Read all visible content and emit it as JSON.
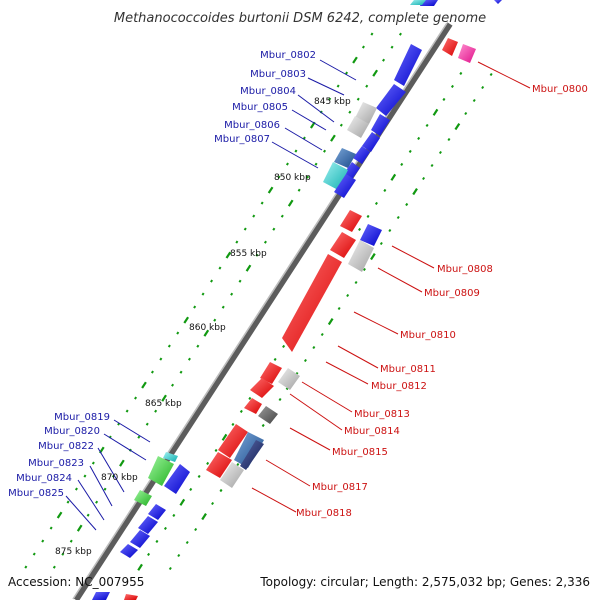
{
  "title": "Methanococcoides burtonii DSM 6242, complete genome",
  "footer": {
    "accession": "Accession: NC_007955",
    "summary": "Topology: circular; Length: 2,575,032 bp; Genes: 2,336"
  },
  "ticks": [
    "845 kbp",
    "850 kbp",
    "855 kbp",
    "860 kbp",
    "865 kbp",
    "870 kbp",
    "875 kbp"
  ],
  "colors": {
    "backbone": "#7a7a7a",
    "tick_dot": "#119911",
    "forward_gene": "#1010e0",
    "reverse_gene": "#ee1111",
    "label_blue": "#1a1aa6",
    "label_red": "#cc1111"
  },
  "gene_labels_left": [
    "Mbur_0802",
    "Mbur_0803",
    "Mbur_0804",
    "Mbur_0805",
    "Mbur_0806",
    "Mbur_0807",
    "Mbur_0819",
    "Mbur_0820",
    "Mbur_0822",
    "Mbur_0823",
    "Mbur_0824",
    "Mbur_0825"
  ],
  "gene_labels_right": [
    "Mbur_0800",
    "Mbur_0808",
    "Mbur_0809",
    "Mbur_0810",
    "Mbur_0811",
    "Mbur_0812",
    "Mbur_0813",
    "Mbur_0814",
    "Mbur_0815",
    "Mbur_0817",
    "Mbur_0818"
  ]
}
